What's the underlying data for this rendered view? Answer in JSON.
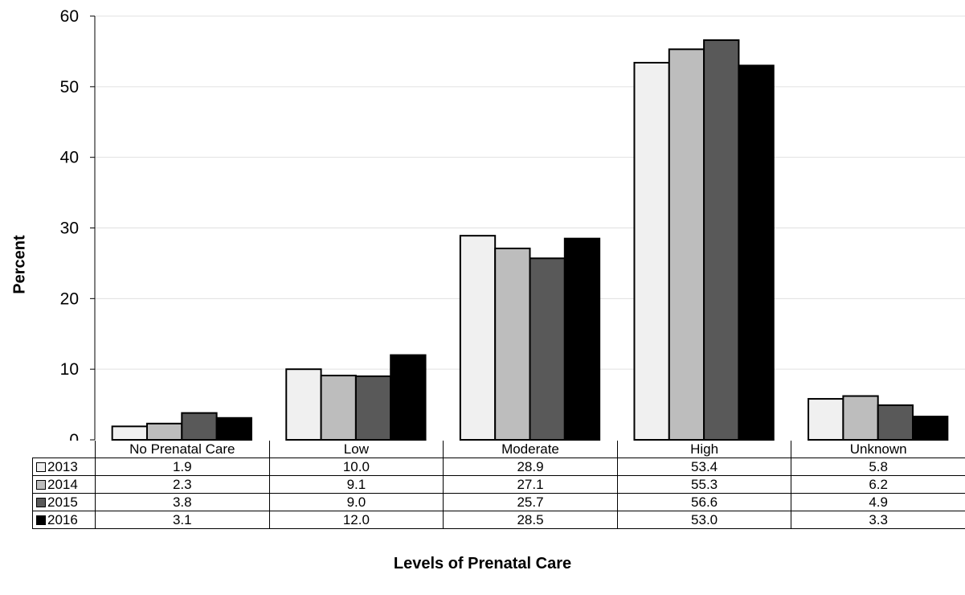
{
  "chart_data": {
    "type": "bar",
    "title": "",
    "xlabel": "Levels of Prenatal Care",
    "ylabel": "Percent",
    "ylim": [
      0,
      60
    ],
    "yticks": [
      0,
      10,
      20,
      30,
      40,
      50,
      60
    ],
    "grid": false,
    "legend": "table-left",
    "categories": [
      "No Prenatal Care",
      "Low",
      "Moderate",
      "High",
      "Unknown"
    ],
    "series": [
      {
        "name": "2013",
        "color": "#f0f0f0",
        "values": [
          1.9,
          10.0,
          28.9,
          53.4,
          5.8
        ],
        "labels": [
          "1.9",
          "10.0",
          "28.9",
          "53.4",
          "5.8"
        ]
      },
      {
        "name": "2014",
        "color": "#bdbdbd",
        "values": [
          2.3,
          9.1,
          27.1,
          55.3,
          6.2
        ],
        "labels": [
          "2.3",
          "9.1",
          "27.1",
          "55.3",
          "6.2"
        ]
      },
      {
        "name": "2015",
        "color": "#595959",
        "values": [
          3.8,
          9.0,
          25.7,
          56.6,
          4.9
        ],
        "labels": [
          "3.8",
          "9.0",
          "25.7",
          "56.6",
          "4.9"
        ]
      },
      {
        "name": "2016",
        "color": "#000000",
        "values": [
          3.1,
          12.0,
          28.5,
          53.0,
          3.3
        ],
        "labels": [
          "3.1",
          "12.0",
          "28.5",
          "53.0",
          "3.3"
        ]
      }
    ]
  }
}
